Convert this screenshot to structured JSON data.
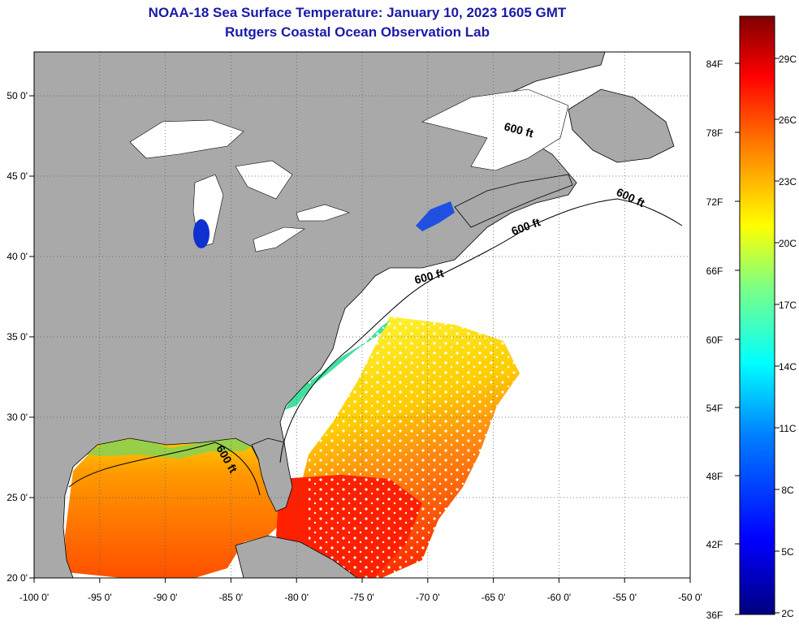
{
  "title_line1": "NOAA-18 Sea Surface Temperature:  January 10, 2023 1605 GMT",
  "title_line2": "Rutgers Coastal Ocean Observation Lab",
  "lon_ticks": [
    "-100 0'",
    "-95 0'",
    "-90 0'",
    "-85 0'",
    "-80 0'",
    "-75 0'",
    "-70 0'",
    "-65 0'",
    "-60 0'",
    "-55 0'",
    "-50 0'"
  ],
  "lat_ticks": [
    "50 0'",
    "45 0'",
    "40 0'",
    "35 0'",
    "30 0'",
    "25 0'",
    "20 0'"
  ],
  "contour_label": "600 ft",
  "colorbar": {
    "fahrenheit_ticks": [
      "84F",
      "78F",
      "72F",
      "66F",
      "60F",
      "54F",
      "48F",
      "42F",
      "36F"
    ],
    "celsius_ticks": [
      "29C",
      "26C",
      "23C",
      "20C",
      "17C",
      "14C",
      "11C",
      "8C",
      "5C",
      "2C"
    ],
    "colors": [
      "#00007f",
      "#0000ff",
      "#0080ff",
      "#00ffff",
      "#80ff80",
      "#ffff00",
      "#ff8000",
      "#ff0000",
      "#7f0000"
    ]
  },
  "colors": {
    "land": "#a9a9a9",
    "ocean_cloud": "#ffffff",
    "title": "#1a1aa8"
  }
}
